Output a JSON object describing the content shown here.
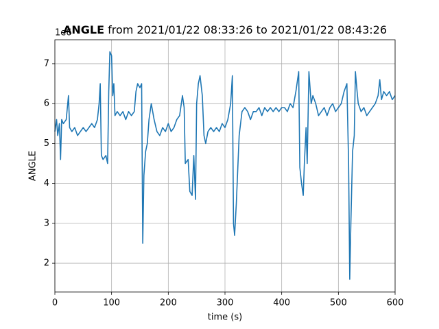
{
  "chart_data": {
    "type": "line",
    "title_bold": "ANGLE",
    "title_rest": "from 2021/01/22 08:33:26 to 2021/01/22 08:43:26",
    "y_offset_label": "1e6",
    "xlabel": "time (s)",
    "ylabel": "ANGLE",
    "xlim": [
      0,
      600
    ],
    "ylim": [
      1.28,
      7.6
    ],
    "xticks": [
      0,
      100,
      200,
      300,
      400,
      500,
      600
    ],
    "yticks": [
      2,
      3,
      4,
      5,
      6,
      7
    ],
    "grid": true,
    "series": [
      {
        "color": "#1f77b4",
        "x": [
          0,
          3,
          5,
          8,
          10,
          12,
          15,
          20,
          24,
          26,
          30,
          35,
          40,
          45,
          50,
          55,
          60,
          65,
          70,
          75,
          78,
          80,
          82,
          85,
          90,
          93,
          95,
          97,
          100,
          102,
          104,
          106,
          110,
          115,
          120,
          125,
          130,
          135,
          140,
          143,
          146,
          150,
          153,
          155,
          157,
          160,
          163,
          166,
          170,
          175,
          180,
          185,
          190,
          195,
          200,
          205,
          210,
          215,
          220,
          225,
          228,
          230,
          235,
          238,
          242,
          245,
          248,
          250,
          253,
          256,
          260,
          263,
          266,
          270,
          275,
          280,
          285,
          290,
          295,
          300,
          305,
          310,
          313,
          315,
          317,
          320,
          325,
          330,
          335,
          340,
          345,
          350,
          355,
          360,
          365,
          370,
          375,
          380,
          385,
          390,
          395,
          400,
          405,
          410,
          415,
          420,
          425,
          430,
          432,
          435,
          438,
          440,
          443,
          445,
          448,
          452,
          455,
          460,
          465,
          470,
          475,
          480,
          485,
          490,
          495,
          500,
          505,
          510,
          515,
          518,
          520,
          522,
          525,
          528,
          530,
          533,
          535,
          540,
          545,
          550,
          555,
          560,
          565,
          570,
          573,
          576,
          580,
          585,
          590,
          595,
          600
        ],
        "values": [
          5.3,
          5.6,
          5.2,
          5.5,
          4.6,
          5.6,
          5.5,
          5.6,
          6.2,
          5.4,
          5.3,
          5.4,
          5.2,
          5.3,
          5.4,
          5.3,
          5.4,
          5.5,
          5.4,
          5.6,
          6.0,
          6.5,
          4.7,
          4.6,
          4.7,
          4.5,
          6.3,
          7.3,
          7.2,
          6.2,
          6.5,
          5.7,
          5.8,
          5.7,
          5.8,
          5.6,
          5.8,
          5.7,
          5.8,
          6.3,
          6.5,
          6.4,
          6.5,
          2.5,
          4.2,
          4.8,
          5.0,
          5.6,
          6.0,
          5.6,
          5.3,
          5.2,
          5.4,
          5.3,
          5.5,
          5.3,
          5.4,
          5.6,
          5.7,
          6.2,
          5.9,
          4.5,
          4.6,
          3.8,
          3.7,
          4.7,
          3.6,
          6.0,
          6.5,
          6.7,
          6.2,
          5.2,
          5.0,
          5.3,
          5.4,
          5.3,
          5.4,
          5.3,
          5.5,
          5.4,
          5.6,
          6.0,
          6.7,
          3.0,
          2.7,
          3.5,
          5.2,
          5.8,
          5.9,
          5.8,
          5.6,
          5.8,
          5.8,
          5.9,
          5.7,
          5.9,
          5.8,
          5.9,
          5.8,
          5.9,
          5.8,
          5.9,
          5.9,
          5.8,
          6.0,
          5.9,
          6.3,
          6.8,
          4.4,
          4.0,
          3.7,
          4.5,
          5.4,
          4.5,
          6.8,
          6.0,
          6.2,
          6.0,
          5.7,
          5.8,
          5.9,
          5.7,
          5.9,
          6.0,
          5.8,
          5.9,
          6.0,
          6.3,
          6.5,
          4.5,
          1.6,
          3.0,
          4.8,
          5.2,
          6.8,
          6.3,
          6.0,
          5.8,
          5.9,
          5.7,
          5.8,
          5.9,
          6.0,
          6.2,
          6.6,
          6.1,
          6.3,
          6.2,
          6.3,
          6.1,
          6.2
        ]
      }
    ]
  }
}
